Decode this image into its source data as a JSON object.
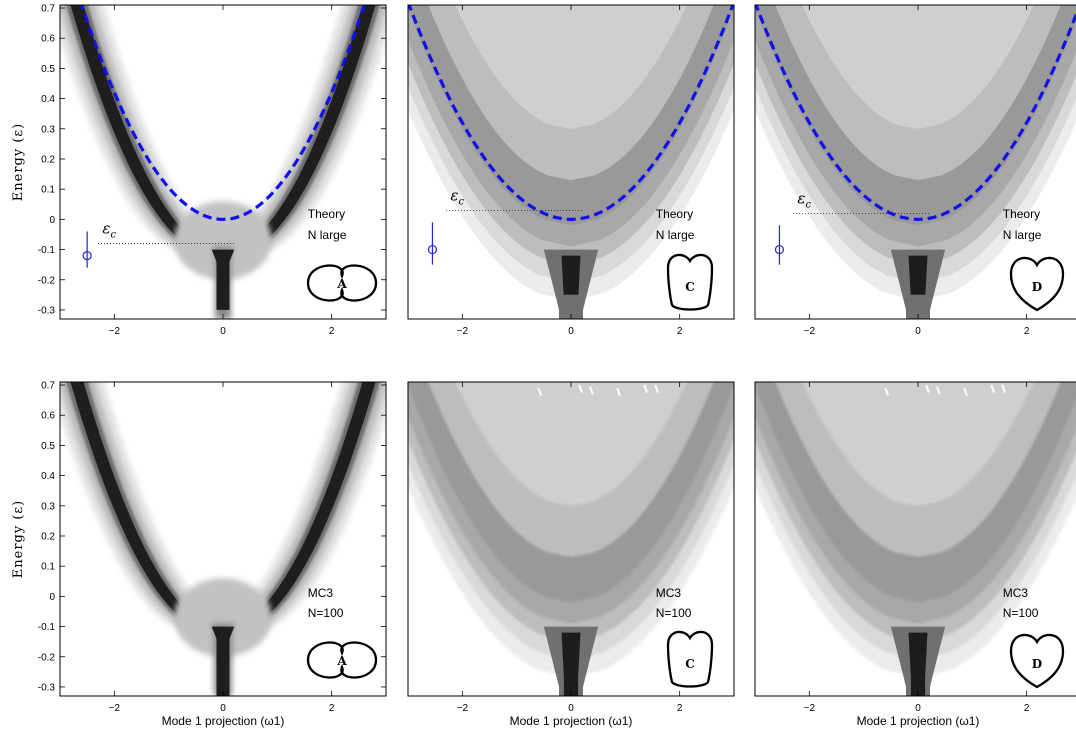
{
  "chart_data": [
    {
      "type": "heatmap",
      "id": "A-theory",
      "shape_letter": "A",
      "shape": "peanut",
      "model": "narrow",
      "note_line1": "Theory",
      "note_line2": "N large",
      "ylabel": "Energy (ε)",
      "xlabel": "",
      "xlim": [
        -3,
        3
      ],
      "ylim": [
        -0.33,
        0.71
      ],
      "xticks": [
        -2,
        0,
        2
      ],
      "xtick_labels": [
        "−2",
        "0",
        "2"
      ],
      "yticks": [
        -0.3,
        -0.2,
        -0.1,
        0,
        0.1,
        0.2,
        0.3,
        0.4,
        0.5,
        0.6,
        0.7
      ],
      "ytick_labels": [
        "-0.3",
        "-0.2",
        "-0.1",
        "0",
        "0.1",
        "0.2",
        "0.3",
        "0.4",
        "0.5",
        "0.6",
        "0.7"
      ],
      "dashed_curve": {
        "color": "#1010e8",
        "vertex_energy": 0.0,
        "curvature": 0.105
      },
      "eps_c": {
        "label": "εc",
        "energy": -0.08,
        "marker_x": -2.5,
        "marker_y": -0.12,
        "err_low": -0.16,
        "err_high": -0.04
      }
    },
    {
      "type": "heatmap",
      "id": "C-theory",
      "shape_letter": "C",
      "shape": "heart",
      "model": "wide",
      "note_line1": "Theory",
      "note_line2": "N large",
      "ylabel": "",
      "xlabel": "",
      "xlim": [
        -3,
        3
      ],
      "ylim": [
        -0.33,
        0.71
      ],
      "xticks": [
        -2,
        0,
        2
      ],
      "xtick_labels": [
        "−2",
        "0",
        "2"
      ],
      "yticks": [],
      "ytick_labels": [],
      "dashed_curve": {
        "color": "#1010e8",
        "vertex_energy": 0.0,
        "curvature": 0.08
      },
      "eps_c": {
        "label": "εc",
        "energy": 0.03,
        "marker_x": -2.55,
        "marker_y": -0.1,
        "err_low": -0.15,
        "err_high": -0.01
      }
    },
    {
      "type": "heatmap",
      "id": "D-theory",
      "shape_letter": "D",
      "shape": "heart",
      "model": "wide",
      "note_line1": "Theory",
      "note_line2": "N large",
      "ylabel": "",
      "xlabel": "",
      "xlim": [
        -3,
        3
      ],
      "ylim": [
        -0.33,
        0.71
      ],
      "xticks": [
        -2,
        0,
        2
      ],
      "xtick_labels": [
        "−2",
        "0",
        "2"
      ],
      "yticks": [],
      "ytick_labels": [],
      "dashed_curve": {
        "color": "#1010e8",
        "vertex_energy": 0.0,
        "curvature": 0.08
      },
      "eps_c": {
        "label": "εc",
        "energy": 0.02,
        "marker_x": -2.55,
        "marker_y": -0.1,
        "err_low": -0.15,
        "err_high": -0.02
      }
    },
    {
      "type": "heatmap",
      "id": "A-mc3",
      "shape_letter": "A",
      "shape": "peanut",
      "model": "narrow",
      "note_line1": "MC3",
      "note_line2": "N=100",
      "ylabel": "Energy (ε)",
      "xlabel": "Mode 1 projection (ω1)",
      "xlim": [
        -3,
        3
      ],
      "ylim": [
        -0.33,
        0.71
      ],
      "xticks": [
        -2,
        0,
        2
      ],
      "xtick_labels": [
        "−2",
        "0",
        "2"
      ],
      "yticks": [
        -0.3,
        -0.2,
        -0.1,
        0,
        0.1,
        0.2,
        0.3,
        0.4,
        0.5,
        0.6,
        0.7
      ],
      "ytick_labels": [
        "-0.3",
        "-0.2",
        "-0.1",
        "0",
        "0.1",
        "0.2",
        "0.3",
        "0.4",
        "0.5",
        "0.6",
        "0.7"
      ]
    },
    {
      "type": "heatmap",
      "id": "C-mc3",
      "shape_letter": "C",
      "shape": "heart",
      "model": "wide",
      "note_line1": "MC3",
      "note_line2": "N=100",
      "ylabel": "",
      "xlabel": "Mode 1 projection (ω1)",
      "xlim": [
        -3,
        3
      ],
      "ylim": [
        -0.33,
        0.71
      ],
      "xticks": [
        -2,
        0,
        2
      ],
      "xtick_labels": [
        "−2",
        "0",
        "2"
      ],
      "yticks": [],
      "ytick_labels": []
    },
    {
      "type": "heatmap",
      "id": "D-mc3",
      "shape_letter": "D",
      "shape": "heart",
      "model": "wide",
      "note_line1": "MC3",
      "note_line2": "N=100",
      "ylabel": "",
      "xlabel": "Mode 1 projection (ω1)",
      "xlim": [
        -3,
        3
      ],
      "ylim": [
        -0.33,
        0.71
      ],
      "xticks": [
        -2,
        0,
        2
      ],
      "xtick_labels": [
        "−2",
        "0",
        "2"
      ],
      "yticks": [],
      "ytick_labels": []
    }
  ]
}
